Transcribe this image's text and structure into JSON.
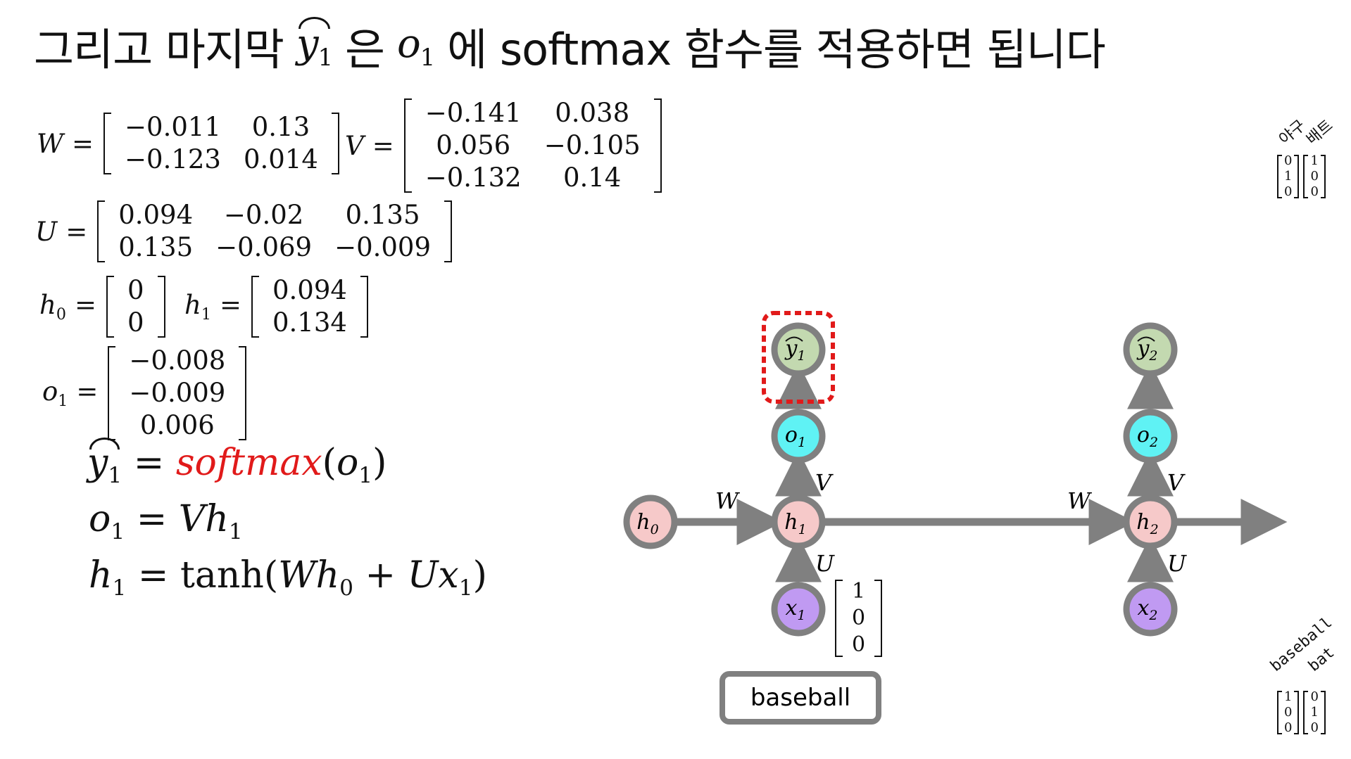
{
  "title": {
    "part1": "그리고 마지막",
    "y1": "y",
    "y1_sub": "1",
    "part2": "은",
    "o1": "o",
    "o1_sub": "1",
    "part3": "에 softmax 함수를 적용하면 됩니다"
  },
  "matrices": {
    "W": {
      "label": "W",
      "rows": [
        [
          "−0.011",
          "0.13"
        ],
        [
          "−0.123",
          "0.014"
        ]
      ]
    },
    "V": {
      "label": "V",
      "rows": [
        [
          "−0.141",
          "0.038"
        ],
        [
          "0.056",
          "−0.105"
        ],
        [
          "−0.132",
          "0.14"
        ]
      ]
    },
    "U": {
      "label": "U",
      "rows": [
        [
          "0.094",
          "−0.02",
          "0.135"
        ],
        [
          "0.135",
          "−0.069",
          "−0.009"
        ]
      ]
    },
    "h0": {
      "label": "h",
      "sub": "0",
      "rows": [
        [
          "0"
        ],
        [
          "0"
        ]
      ]
    },
    "h1": {
      "label": "h",
      "sub": "1",
      "rows": [
        [
          "0.094"
        ],
        [
          "0.134"
        ]
      ]
    },
    "o1": {
      "label": "o",
      "sub": "1",
      "rows": [
        [
          "−0.008"
        ],
        [
          "−0.009"
        ],
        [
          "0.006"
        ]
      ]
    }
  },
  "equations": {
    "eq1": {
      "lhs": "y",
      "lhs_sub": "1",
      "fn": "softmax",
      "arg": "o",
      "arg_sub": "1"
    },
    "eq2": {
      "lhs": "o",
      "lhs_sub": "1",
      "rhs_a": "Vh",
      "rhs_sub": "1"
    },
    "eq3": {
      "lhs": "h",
      "lhs_sub": "1",
      "fn": "tanh",
      "wh": "Wh",
      "wh_sub": "0",
      "ux": "Ux",
      "ux_sub": "1"
    }
  },
  "diagram": {
    "nodes": {
      "h0": {
        "letter": "h",
        "sub": "0"
      },
      "h1": {
        "letter": "h",
        "sub": "1"
      },
      "h2": {
        "letter": "h",
        "sub": "2"
      },
      "o1": {
        "letter": "o",
        "sub": "1"
      },
      "o2": {
        "letter": "o",
        "sub": "2"
      },
      "y1": {
        "letter": "y",
        "sub": "1"
      },
      "y2": {
        "letter": "y",
        "sub": "2"
      },
      "x1": {
        "letter": "x",
        "sub": "1"
      },
      "x2": {
        "letter": "x",
        "sub": "2"
      }
    },
    "edge_labels": {
      "W": "W",
      "V": "V",
      "U": "U"
    },
    "x1_vector": [
      "1",
      "0",
      "0"
    ],
    "input_word": "baseball"
  },
  "side": {
    "top_labels": [
      "야구",
      "배트"
    ],
    "top_vectors": [
      [
        "0",
        "1",
        "0"
      ],
      [
        "1",
        "0",
        "0"
      ]
    ],
    "bottom_labels": [
      "baseball",
      "bat"
    ],
    "bottom_vectors": [
      [
        "1",
        "0",
        "0"
      ],
      [
        "0",
        "1",
        "0"
      ]
    ]
  },
  "colors": {
    "pink": "#f6c9c9",
    "cyan": "#5ff2f4",
    "green": "#c3d9b0",
    "purple": "#c09af2",
    "gray": "#808080",
    "highlight": "#e11a1a"
  }
}
